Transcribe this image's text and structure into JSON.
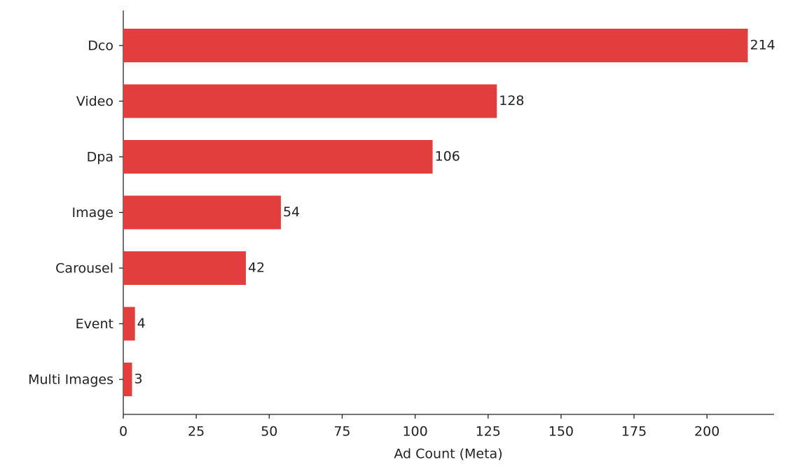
{
  "chart_data": {
    "type": "barh",
    "x_label": "Ad Count (Meta)",
    "categories": [
      "Dco",
      "Video",
      "Dpa",
      "Image",
      "Carousel",
      "Event",
      "Multi Images"
    ],
    "values": [
      214,
      128,
      106,
      54,
      42,
      4,
      3
    ],
    "color": "#e33e3e",
    "xlim": [
      0,
      223
    ],
    "xticks": [
      0,
      25,
      50,
      75,
      100,
      125,
      150,
      175,
      200
    ]
  }
}
